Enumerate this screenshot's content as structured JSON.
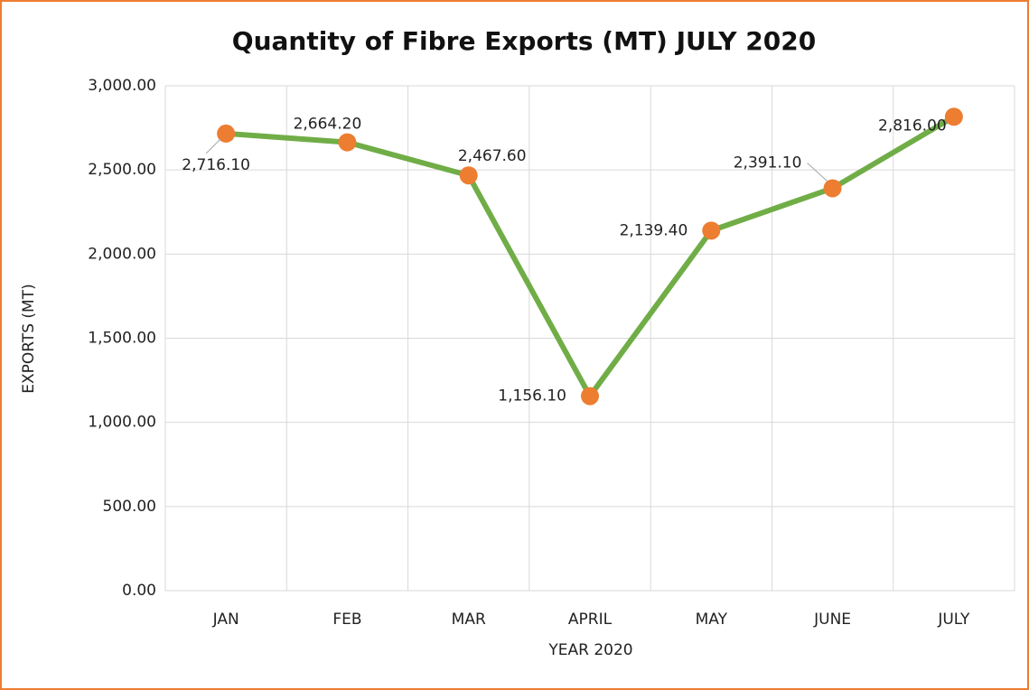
{
  "chart_data": {
    "type": "line",
    "title": "Quantity of Fibre Exports (MT) JULY 2020",
    "x_label": "YEAR 2020",
    "y_label": "EXPORTS (MT)",
    "categories": [
      "JAN",
      "FEB",
      "MAR",
      "APRIL",
      "MAY",
      "JUNE",
      "JULY"
    ],
    "series": [
      {
        "name": "EXPORTS (MT)",
        "color": "#70ad47",
        "marker_color": "#ed7d31",
        "values": [
          2716.1,
          2664.2,
          2467.6,
          1156.1,
          2139.4,
          2391.1,
          2816.0
        ],
        "value_labels": [
          "2,716.10",
          "2,664.20",
          "2,467.60",
          "1,156.10",
          "2,139.40",
          "2,391.10",
          "2,816.00"
        ]
      }
    ],
    "ylim": [
      0,
      3000
    ],
    "yticks": [
      {
        "value": 0,
        "label": "0.00"
      },
      {
        "value": 500,
        "label": "500.00"
      },
      {
        "value": 1000,
        "label": "1,000.00"
      },
      {
        "value": 1500,
        "label": "1,500.00"
      },
      {
        "value": 2000,
        "label": "2,000.00"
      },
      {
        "value": 2500,
        "label": "2,500.00"
      },
      {
        "value": 3000,
        "label": "3,000.00"
      }
    ],
    "grid": true
  }
}
